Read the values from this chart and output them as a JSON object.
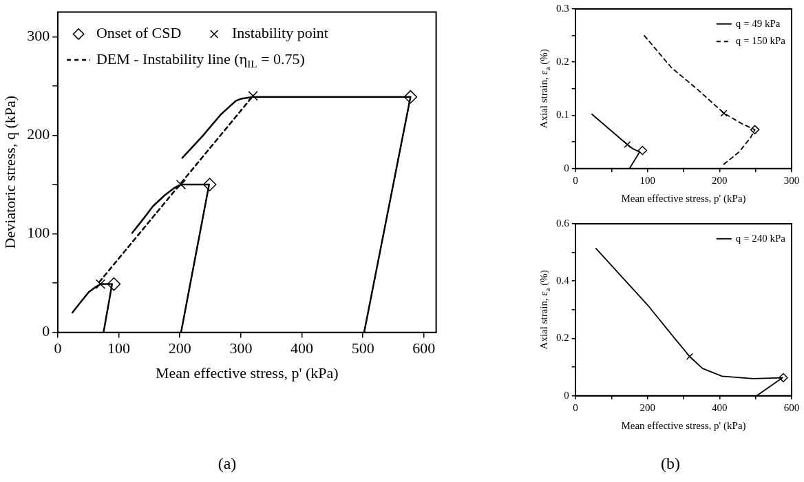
{
  "chart_data": [
    {
      "type": "line",
      "xlabel": "Mean effective stress, p' (kPa)",
      "ylabel": "Deviatoric stress, q (kPa)",
      "xlim": [
        0,
        620
      ],
      "ylim": [
        0,
        325
      ],
      "xticks": [
        0,
        100,
        200,
        300,
        400,
        500,
        600
      ],
      "yticks": [
        0,
        {
          "value": 50,
          "label": null
        },
        100,
        {
          "value": 150,
          "label": null
        },
        200,
        {
          "value": 250,
          "label": null
        },
        300
      ],
      "legend": "top left",
      "marker": "none",
      "annotations": [
        "(a)"
      ],
      "series": [
        {
          "type": "line",
          "color": "#000000",
          "line_style": "solid",
          "x": [
            75,
            89,
            70,
            62,
            51,
            38,
            24
          ],
          "values": [
            0,
            49,
            49,
            46,
            41,
            31,
            20
          ]
        },
        {
          "type": "line",
          "color": "#000000",
          "line_style": "solid",
          "x": [
            202,
            248,
            202,
            192,
            175,
            156,
            140,
            122
          ],
          "values": [
            0,
            150,
            150,
            147,
            139,
            128,
            115,
            101
          ]
        },
        {
          "type": "line",
          "color": "#000000",
          "line_style": "solid",
          "x": [
            502,
            578,
            320,
            300,
            292,
            267,
            237,
            204
          ],
          "values": [
            0,
            239,
            239,
            237,
            235,
            221,
            199,
            177
          ]
        },
        {
          "name": "Onset of CSD",
          "type": "scatter",
          "marker": "diamond",
          "color": "#000000",
          "x": [
            92,
            249,
            578
          ],
          "values": [
            49,
            150,
            239
          ]
        },
        {
          "name": "Instability point",
          "type": "scatter",
          "marker": "cross",
          "color": "#000000",
          "x": [
            70,
            202,
            320
          ],
          "values": [
            49,
            150,
            240
          ]
        },
        {
          "name": "DEM - Instability line (η$_{IL}$ = 0.75)",
          "type": "line",
          "color": "#000000",
          "line_style": "dashed",
          "x": [
            68,
            320
          ],
          "values": [
            51,
            240
          ]
        }
      ]
    },
    {
      "type": "line",
      "xlabel": "Mean effective stress, p' (kPa)",
      "ylabel": "Axial strain, ε$_{a}$ (%)",
      "xlim": [
        0,
        300
      ],
      "ylim": [
        0,
        0.3
      ],
      "xticks": [
        0,
        {
          "value": 50,
          "label": null
        },
        100,
        {
          "value": 150,
          "label": null
        },
        200,
        {
          "value": 250,
          "label": null
        },
        300
      ],
      "yticks": [
        0,
        {
          "value": 0.05,
          "label": null
        },
        0.1,
        {
          "value": 0.15,
          "label": null
        },
        0.2,
        {
          "value": 0.25,
          "label": null
        },
        0.3
      ],
      "legend": "top right",
      "marker": "none",
      "series": [
        {
          "name": "q = 49 kPa",
          "type": "line",
          "color": "#000000",
          "line_style": "solid",
          "x": [
            75,
            89,
            80,
            72,
            23
          ],
          "values": [
            0,
            0.031,
            0.037,
            0.045,
            0.102
          ]
        },
        {
          "name": "q = 150 kPa",
          "type": "line",
          "color": "#000000",
          "line_style": "dashed",
          "x": [
            206,
            227,
            243,
            249,
            230,
            206,
            170,
            133,
            93
          ],
          "values": [
            0.008,
            0.031,
            0.058,
            0.073,
            0.085,
            0.104,
            0.148,
            0.19,
            0.254
          ]
        },
        {
          "type": "scatter",
          "marker": "diamond",
          "color": "#000000",
          "x": [
            93,
            249
          ],
          "values": [
            0.034,
            0.073
          ]
        },
        {
          "type": "scatter",
          "marker": "cross",
          "color": "#000000",
          "x": [
            72,
            206
          ],
          "values": [
            0.045,
            0.104
          ]
        }
      ]
    },
    {
      "type": "line",
      "xlabel": "Mean effective stress, p' (kPa)",
      "ylabel": "Axial strain, ε$_{a}$ (%)",
      "xlim": [
        0,
        600
      ],
      "ylim": [
        0,
        0.6
      ],
      "xticks": [
        0,
        {
          "value": 100,
          "label": null
        },
        200,
        {
          "value": 300,
          "label": null
        },
        400,
        {
          "value": 500,
          "label": null
        },
        600
      ],
      "yticks": [
        0,
        {
          "value": 0.1,
          "label": null
        },
        0.2,
        {
          "value": 0.3,
          "label": null
        },
        0.4,
        {
          "value": 0.5,
          "label": null
        },
        0.6
      ],
      "legend": "top right",
      "marker": "none",
      "annotations": [
        "(b)"
      ],
      "series": [
        {
          "name": "q = 240 kPa",
          "type": "line",
          "color": "#000000",
          "line_style": "solid",
          "x": [
            503,
            575,
            493,
            407,
            353,
            317,
            273,
            200,
            57
          ],
          "values": [
            0,
            0.063,
            0.06,
            0.068,
            0.095,
            0.137,
            0.204,
            0.317,
            0.514
          ]
        },
        {
          "type": "scatter",
          "marker": "diamond",
          "color": "#000000",
          "x": [
            577
          ],
          "values": [
            0.063
          ]
        },
        {
          "type": "scatter",
          "marker": "cross",
          "color": "#000000",
          "x": [
            317
          ],
          "values": [
            0.137
          ]
        }
      ]
    }
  ]
}
